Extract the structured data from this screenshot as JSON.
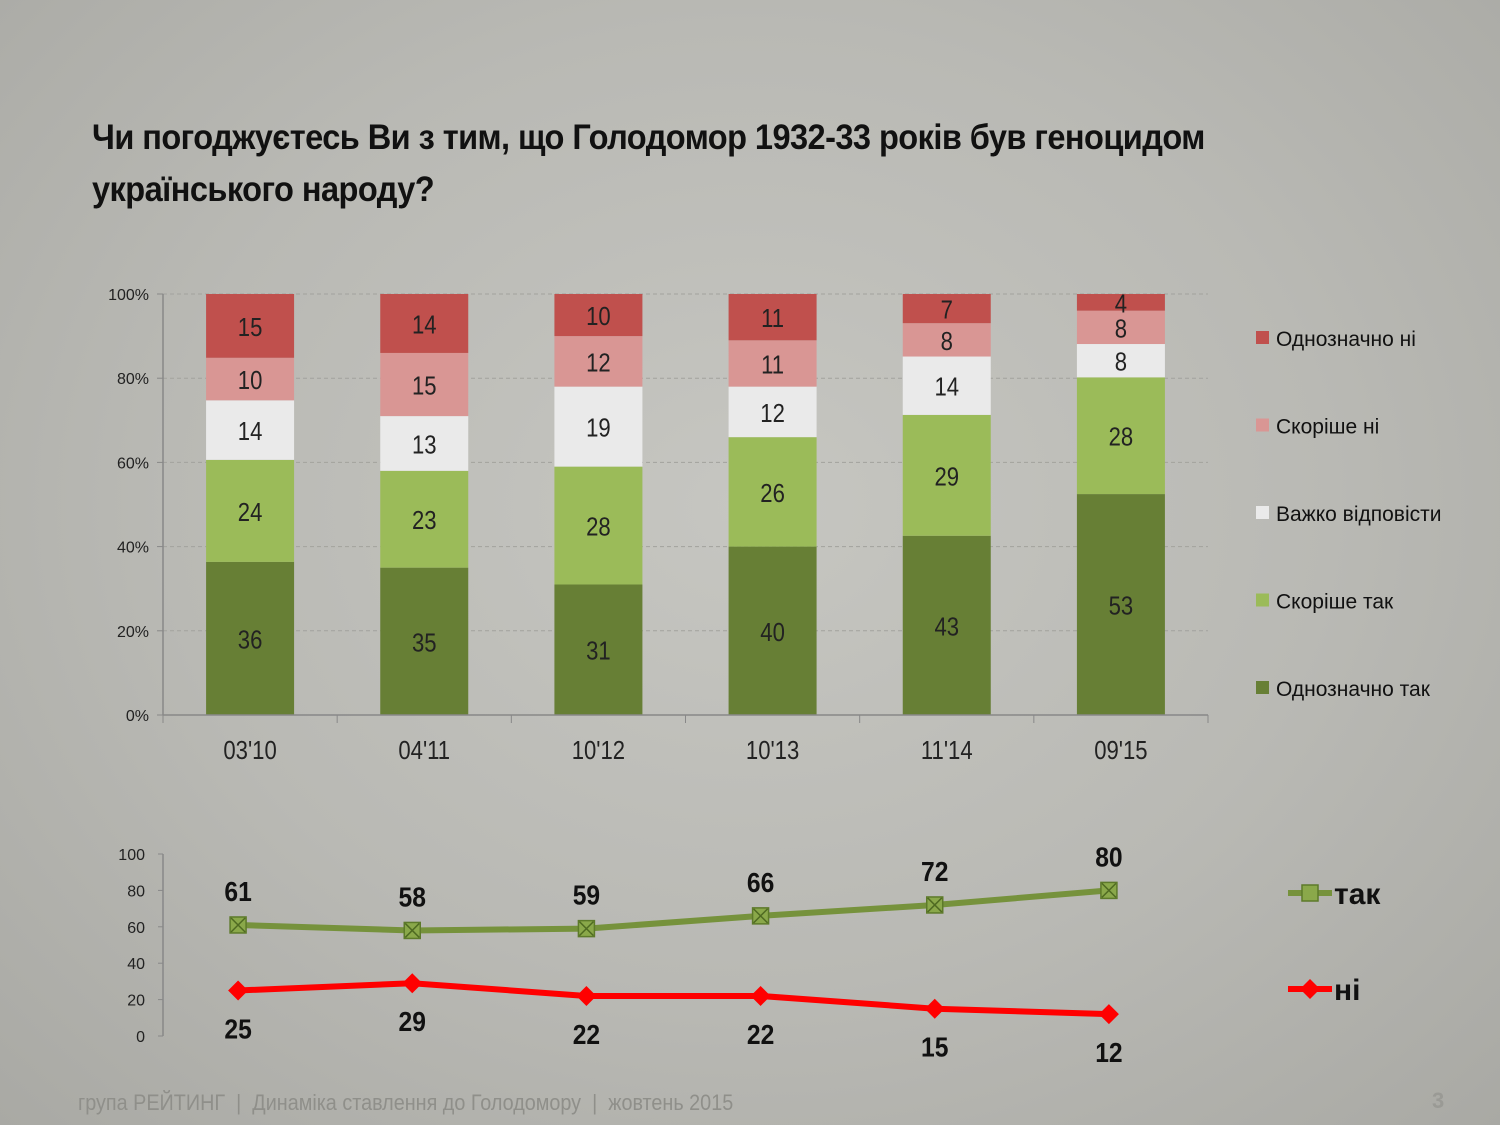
{
  "title": "Чи погоджуєтесь Ви з тим, що Голодомор 1932-33 років був геноцидом українського народу?",
  "footer": "група РЕЙТИНГ  |  Динаміка ставлення до Голодомору  |  жовтень 2015",
  "page_number": "3",
  "chart_data": [
    {
      "type": "bar",
      "stacked": true,
      "categories": [
        "03'10",
        "04'11",
        "10'12",
        "10'13",
        "11'14",
        "09'15"
      ],
      "ylim": [
        0,
        100
      ],
      "yticks": [
        "0%",
        "20%",
        "40%",
        "60%",
        "80%",
        "100%"
      ],
      "grid": true,
      "legend_position": "right",
      "series": [
        {
          "name": "Однозначно так",
          "color": "#677f35",
          "values": [
            36,
            35,
            31,
            40,
            43,
            53
          ]
        },
        {
          "name": "Скоріше так",
          "color": "#9bbb59",
          "values": [
            24,
            23,
            28,
            26,
            29,
            28
          ]
        },
        {
          "name": "Важко відповісти",
          "color": "#eaeaea",
          "values": [
            14,
            13,
            19,
            12,
            14,
            8
          ]
        },
        {
          "name": "Скоріше ні",
          "color": "#d99694",
          "values": [
            10,
            15,
            12,
            11,
            8,
            8
          ]
        },
        {
          "name": "Однозначно ні",
          "color": "#c0504d",
          "values": [
            15,
            14,
            10,
            11,
            7,
            4
          ]
        }
      ]
    },
    {
      "type": "line",
      "categories": [
        "03'10",
        "04'11",
        "10'12",
        "10'13",
        "11'14",
        "09'15"
      ],
      "ylim": [
        0,
        100
      ],
      "yticks": [
        "0",
        "20",
        "40",
        "60",
        "80",
        "100"
      ],
      "legend_position": "right",
      "series": [
        {
          "name": "так",
          "color": "#76923c",
          "marker": "square-x",
          "values": [
            61,
            58,
            59,
            66,
            72,
            80
          ]
        },
        {
          "name": "ні",
          "color": "#ff0000",
          "marker": "diamond",
          "values": [
            25,
            29,
            22,
            22,
            15,
            12
          ]
        }
      ]
    }
  ]
}
